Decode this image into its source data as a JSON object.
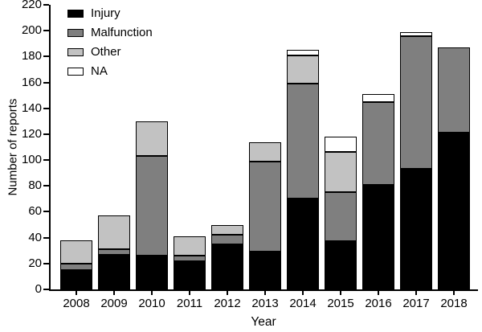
{
  "chart_data": {
    "type": "bar",
    "stacked": true,
    "title": "",
    "xlabel": "Year",
    "ylabel": "Number of reports",
    "ylim": [
      0,
      220
    ],
    "ytick_step": 20,
    "grid": false,
    "legend_position": "top-left",
    "categories": [
      "2008",
      "2009",
      "2010",
      "2011",
      "2012",
      "2013",
      "2014",
      "2015",
      "2016",
      "2017",
      "2018"
    ],
    "series": [
      {
        "name": "Injury",
        "color": "#000000",
        "values": [
          15,
          27,
          26,
          22,
          35,
          29,
          70,
          37,
          81,
          93,
          121
        ]
      },
      {
        "name": "Malfunction",
        "color": "#7f7f7f",
        "values": [
          5,
          4,
          77,
          4,
          7,
          70,
          89,
          38,
          64,
          103,
          66
        ]
      },
      {
        "name": "Other",
        "color": "#c2c2c2",
        "values": [
          18,
          26,
          27,
          15,
          8,
          15,
          22,
          31,
          0,
          0,
          0
        ]
      },
      {
        "name": "NA",
        "color": "#ffffff",
        "values": [
          0,
          0,
          0,
          0,
          0,
          0,
          4,
          12,
          6,
          3,
          0
        ]
      }
    ],
    "totals": [
      38,
      57,
      130,
      41,
      50,
      114,
      185,
      118,
      151,
      199,
      187
    ]
  }
}
